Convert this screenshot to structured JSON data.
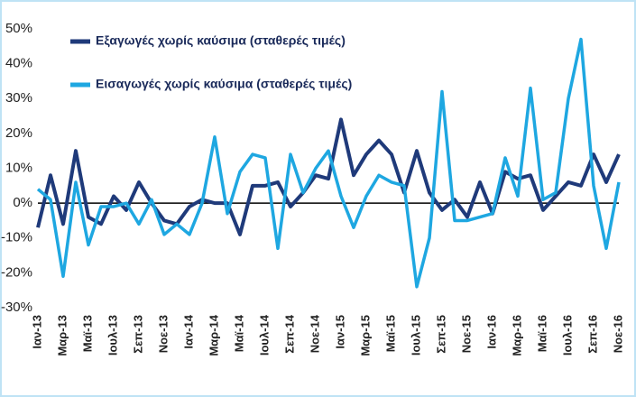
{
  "chart_data": {
    "type": "line",
    "categories": [
      "Ιαν-13",
      null,
      "Μαρ-13",
      null,
      "Μαϊ-13",
      null,
      "Ιουλ-13",
      null,
      "Σεπ-13",
      null,
      "Νοε-13",
      null,
      "Ιαν-14",
      null,
      "Μαρ-14",
      null,
      "Μαϊ-14",
      null,
      "Ιουλ-14",
      null,
      "Σεπ-14",
      null,
      "Νοε-14",
      null,
      "Ιαν-15",
      null,
      "Μαρ-15",
      null,
      "Μαϊ-15",
      null,
      "Ιουλ-15",
      null,
      "Σεπ-15",
      null,
      "Νοε-15",
      null,
      "Ιαν-16",
      null,
      "Μαρ-16",
      null,
      "Μαϊ-16",
      null,
      "Ιουλ-16",
      null,
      "Σεπ-16",
      null,
      "Νοε-16"
    ],
    "series": [
      {
        "name": "Εξαγωγές χωρίς καύσιμα (σταθερές τιμές)",
        "color": "#1f3a7a",
        "values": [
          -7,
          8,
          -6,
          15,
          -4,
          -6,
          2,
          -2,
          6,
          0,
          -5,
          -6,
          -1,
          1,
          0,
          0,
          -9,
          5,
          5,
          6,
          -1,
          3,
          8,
          7,
          24,
          8,
          14,
          18,
          14,
          3,
          15,
          3,
          -2,
          1,
          -4,
          6,
          -3,
          9,
          7,
          8,
          -2,
          2,
          6,
          5,
          14,
          6,
          14
        ]
      },
      {
        "name": "Εισαγωγές χωρίς καύσιμα (σταθερές τιμές)",
        "color": "#1ea7e1",
        "values": [
          4,
          1,
          -21,
          6,
          -12,
          -1,
          -1,
          0,
          -6,
          1,
          -9,
          -6,
          -9,
          0,
          19,
          -3,
          9,
          14,
          13,
          -13,
          14,
          3,
          10,
          15,
          2,
          -7,
          2,
          8,
          6,
          5,
          -24,
          -10,
          32,
          -5,
          -5,
          -4,
          -3,
          13,
          2,
          33,
          1,
          3,
          30,
          47,
          5,
          -13,
          6
        ]
      }
    ],
    "ylim": [
      -30,
      50
    ],
    "yticks": [
      {
        "value": -30,
        "label": "-30%"
      },
      {
        "value": -20,
        "label": "-20%"
      },
      {
        "value": -10,
        "label": "-10%"
      },
      {
        "value": 0,
        "label": "0%"
      },
      {
        "value": 10,
        "label": "10%"
      },
      {
        "value": 20,
        "label": "20%"
      },
      {
        "value": 30,
        "label": "30%"
      },
      {
        "value": 40,
        "label": "40%"
      },
      {
        "value": 50,
        "label": "50%"
      }
    ],
    "legend": "top-left"
  }
}
